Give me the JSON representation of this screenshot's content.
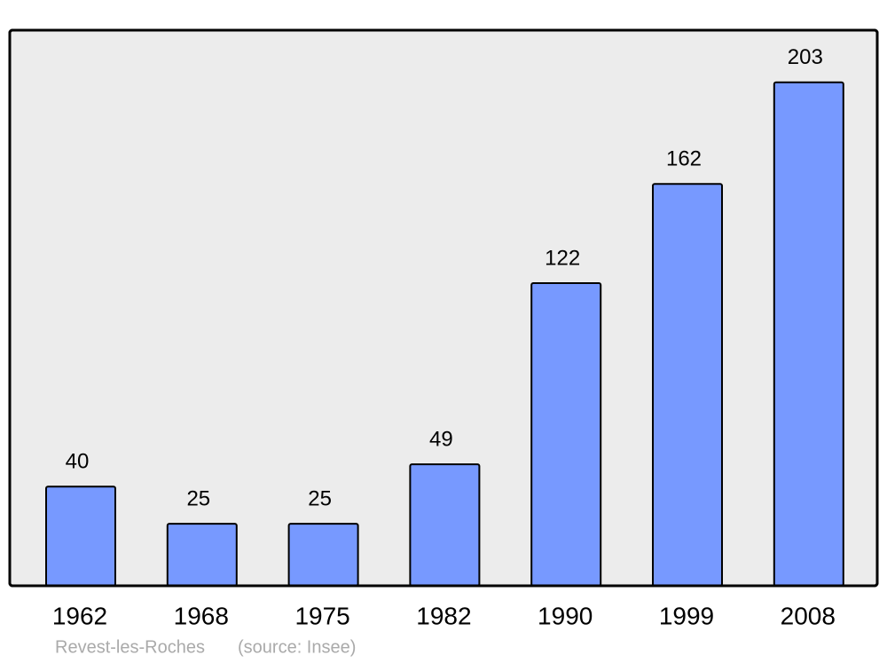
{
  "chart_data": {
    "type": "bar",
    "title": "Revest-les-Roches",
    "source": "(source: Insee)",
    "categories": [
      "1962",
      "1968",
      "1975",
      "1982",
      "1990",
      "1999",
      "2008"
    ],
    "values": [
      40,
      25,
      25,
      49,
      122,
      162,
      203
    ],
    "color": "#7799ff",
    "ylim": [
      0,
      224
    ]
  }
}
